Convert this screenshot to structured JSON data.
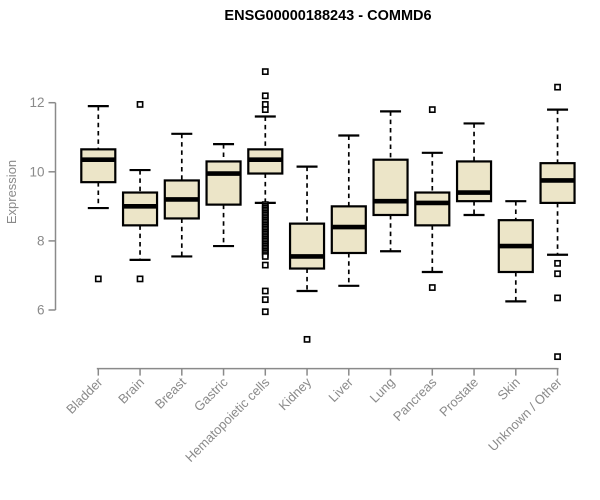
{
  "chart_data": {
    "type": "boxplot",
    "title": "ENSG00000188243 - COMMD6",
    "ylabel": "Expression",
    "xlabel": "",
    "ylim": [
      6,
      12
    ],
    "yticks": [
      6,
      8,
      10,
      12
    ],
    "categories": [
      "Bladder",
      "Brain",
      "Breast",
      "Gastric",
      "Hematopoietic cells",
      "Kidney",
      "Liver",
      "Lung",
      "Pancreas",
      "Prostate",
      "Skin",
      "Unknown / Other"
    ],
    "series": [
      {
        "name": "Bladder",
        "whisker_low": 8.95,
        "q1": 9.7,
        "median": 10.35,
        "q3": 10.65,
        "whisker_high": 11.9,
        "outliers": [
          6.9
        ]
      },
      {
        "name": "Brain",
        "whisker_low": 7.45,
        "q1": 8.45,
        "median": 9.0,
        "q3": 9.4,
        "whisker_high": 10.05,
        "outliers": [
          11.95,
          6.9
        ]
      },
      {
        "name": "Breast",
        "whisker_low": 7.55,
        "q1": 8.65,
        "median": 9.2,
        "q3": 9.75,
        "whisker_high": 11.1,
        "outliers": []
      },
      {
        "name": "Gastric",
        "whisker_low": 7.85,
        "q1": 9.05,
        "median": 9.95,
        "q3": 10.3,
        "whisker_high": 10.8,
        "outliers": []
      },
      {
        "name": "Hematopoietic cells",
        "whisker_low": 9.1,
        "q1": 9.95,
        "median": 10.35,
        "q3": 10.65,
        "whisker_high": 11.6,
        "outliers": [
          12.9,
          12.2,
          11.95,
          11.8,
          9.05,
          9.0,
          8.95,
          8.9,
          8.85,
          8.8,
          8.75,
          8.7,
          8.65,
          8.6,
          8.55,
          8.5,
          8.45,
          8.4,
          8.35,
          8.3,
          8.25,
          8.2,
          8.15,
          8.1,
          8.05,
          8.0,
          7.95,
          7.9,
          7.85,
          7.8,
          7.75,
          7.7,
          7.65,
          7.6,
          7.55,
          7.3,
          6.55,
          6.3,
          5.95
        ]
      },
      {
        "name": "Kidney",
        "whisker_low": 6.55,
        "q1": 7.2,
        "median": 7.55,
        "q3": 8.5,
        "whisker_high": 10.15,
        "outliers": [
          5.15
        ]
      },
      {
        "name": "Liver",
        "whisker_low": 6.7,
        "q1": 7.65,
        "median": 8.4,
        "q3": 9.0,
        "whisker_high": 11.05,
        "outliers": []
      },
      {
        "name": "Lung",
        "whisker_low": 7.7,
        "q1": 8.75,
        "median": 9.15,
        "q3": 10.35,
        "whisker_high": 11.75,
        "outliers": []
      },
      {
        "name": "Pancreas",
        "whisker_low": 7.1,
        "q1": 8.45,
        "median": 9.1,
        "q3": 9.4,
        "whisker_high": 10.55,
        "outliers": [
          11.8,
          6.65
        ]
      },
      {
        "name": "Prostate",
        "whisker_low": 8.75,
        "q1": 9.15,
        "median": 9.4,
        "q3": 10.3,
        "whisker_high": 11.4,
        "outliers": []
      },
      {
        "name": "Skin",
        "whisker_low": 6.25,
        "q1": 7.1,
        "median": 7.85,
        "q3": 8.6,
        "whisker_high": 9.15,
        "outliers": []
      },
      {
        "name": "Unknown / Other",
        "whisker_low": 7.6,
        "q1": 9.1,
        "median": 9.75,
        "q3": 10.25,
        "whisker_high": 11.8,
        "outliers": [
          12.45,
          7.35,
          7.05,
          6.35,
          4.65
        ]
      }
    ],
    "colors": {
      "box_fill": "#ece5c8",
      "box_stroke": "#000000",
      "median": "#000000",
      "whisker": "#000000",
      "outlier_stroke": "#000000",
      "outlier_fill": "#ffffff",
      "axis": "#8a8a8a",
      "tick_label": "#8a8a8a",
      "title": "#000000"
    },
    "legend": null,
    "grid": false
  }
}
